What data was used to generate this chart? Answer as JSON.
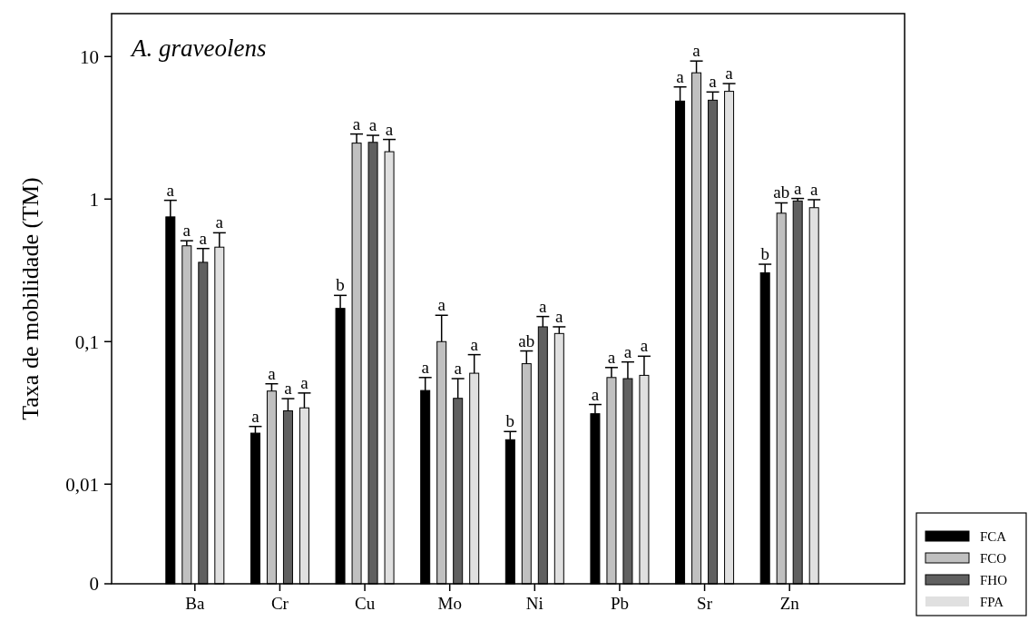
{
  "chart_data": {
    "type": "bar",
    "title": "A. graveolens",
    "ylabel": "Taxa de mobilidade (TM)",
    "categories": [
      "Ba",
      "Cr",
      "Cu",
      "Mo",
      "Ni",
      "Pb",
      "Sr",
      "Zn"
    ],
    "log": true,
    "ylim": [
      0.002,
      20
    ],
    "yticks": [
      {
        "value": 0.002,
        "label": "0"
      },
      {
        "value": 0.01,
        "label": "0,01"
      },
      {
        "value": 0.1,
        "label": "0,1"
      },
      {
        "value": 1,
        "label": "1"
      },
      {
        "value": 10,
        "label": "10"
      }
    ],
    "grid": false,
    "legend": "bottom right",
    "series": [
      {
        "name": "FCA",
        "color": "#000000",
        "values": [
          0.75,
          0.0228,
          0.171,
          0.0454,
          0.0205,
          0.0312,
          4.87,
          0.304
        ],
        "errors": [
          [
            0.75,
            0.98
          ],
          [
            0.0228,
            0.0254
          ],
          [
            0.171,
            0.211
          ],
          [
            0.0454,
            0.056
          ],
          [
            0.0205,
            0.0234
          ],
          [
            0.0312,
            0.0362
          ],
          [
            4.87,
            6.12
          ],
          [
            0.304,
            0.349
          ]
        ],
        "value_labels": [
          "a",
          "a",
          "b",
          "a",
          "b",
          "a",
          "a",
          "b"
        ]
      },
      {
        "name": "FCO",
        "color": "#c0c0c0",
        "values": [
          0.47,
          0.045,
          2.47,
          0.1,
          0.07,
          0.056,
          7.69,
          0.796
        ],
        "errors": [
          [
            0.47,
            0.51
          ],
          [
            0.045,
            0.0506
          ],
          [
            2.47,
            2.86
          ],
          [
            0.1,
            0.153
          ],
          [
            0.07,
            0.086
          ],
          [
            0.056,
            0.0658
          ],
          [
            7.69,
            9.3
          ],
          [
            0.796,
            0.94
          ]
        ],
        "value_labels": [
          "a",
          "a",
          "a",
          "a",
          "ab",
          "a",
          "a",
          "ab"
        ]
      },
      {
        "name": "FHO",
        "color": "#606060",
        "values": [
          0.36,
          0.0327,
          2.5,
          0.04,
          0.127,
          0.055,
          4.94,
          0.97
        ],
        "errors": [
          [
            0.36,
            0.45
          ],
          [
            0.0327,
            0.0398
          ],
          [
            2.5,
            2.8
          ],
          [
            0.04,
            0.055
          ],
          [
            0.127,
            0.15
          ],
          [
            0.055,
            0.072
          ],
          [
            4.94,
            5.64
          ],
          [
            0.97,
            1.01
          ]
        ],
        "value_labels": [
          "a",
          "a",
          "a",
          "a",
          "a",
          "a",
          "a",
          "a"
        ]
      },
      {
        "name": "FPA",
        "color": "#e0e0e0",
        "values": [
          0.46,
          0.0343,
          2.15,
          0.06,
          0.114,
          0.058,
          5.7,
          0.87
        ],
        "errors": [
          [
            0.46,
            0.58
          ],
          [
            0.0343,
            0.0436
          ],
          [
            2.15,
            2.62
          ],
          [
            0.06,
            0.081
          ],
          [
            0.114,
            0.127
          ],
          [
            0.058,
            0.079
          ],
          [
            5.7,
            6.46
          ],
          [
            0.87,
            0.99
          ]
        ],
        "value_labels": [
          "a",
          "a",
          "a",
          "a",
          "a",
          "a",
          "a",
          "a"
        ]
      }
    ]
  }
}
